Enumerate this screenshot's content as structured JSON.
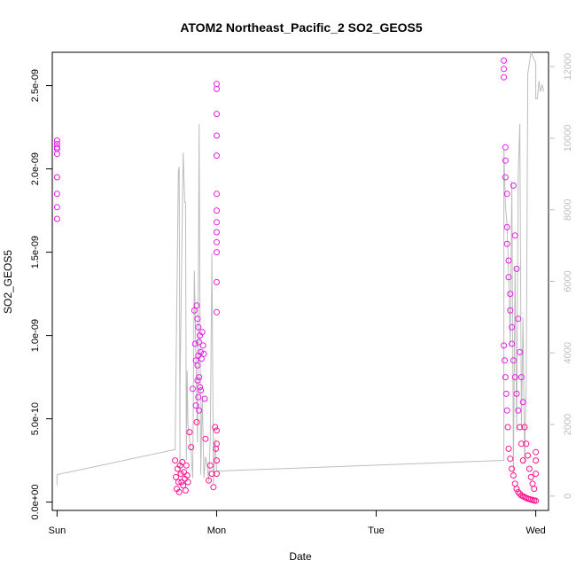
{
  "chart_data": {
    "type": "scatter",
    "title": "ATOM2 Northeast_Pacific_2 SO2_GEOS5",
    "xlabel": "Date",
    "ylabel": "SO2_GEOS5",
    "xlim": [
      -0.03,
      3.08
    ],
    "ylim": [
      -5e-11,
      2.7e-09
    ],
    "y2lim": [
      -400,
      12400
    ],
    "x_ticks": [
      {
        "value": 0,
        "label": "Sun"
      },
      {
        "value": 1,
        "label": "Mon"
      },
      {
        "value": 2,
        "label": "Tue"
      },
      {
        "value": 3,
        "label": "Wed"
      }
    ],
    "y_ticks": [
      {
        "value": 0,
        "label": "0.0e+00"
      },
      {
        "value": 5e-10,
        "label": "5.0e-10"
      },
      {
        "value": 1e-09,
        "label": "1.0e-09"
      },
      {
        "value": 1.5e-09,
        "label": "1.5e-09"
      },
      {
        "value": 2e-09,
        "label": "2.0e-09"
      },
      {
        "value": 2.5e-09,
        "label": "2.5e-09"
      }
    ],
    "y2_ticks": [
      {
        "value": 0,
        "label": "0"
      },
      {
        "value": 2000,
        "label": "2000"
      },
      {
        "value": 4000,
        "label": "4000"
      },
      {
        "value": 6000,
        "label": "6000"
      },
      {
        "value": 8000,
        "label": "8000"
      },
      {
        "value": 10000,
        "label": "10000"
      },
      {
        "value": 12000,
        "label": "12000"
      }
    ],
    "grid": false,
    "colors": {
      "points_high": "#e61ee6",
      "points_low": "#ff1493",
      "altitude_line": "#bdbdbd"
    },
    "series": [
      {
        "kind": "points",
        "x": [
          0.0,
          0.0,
          0.0,
          0.0,
          0.0,
          0.0,
          0.0,
          0.0,
          0.0,
          0.74,
          0.745,
          0.75,
          0.755,
          0.76,
          0.765,
          0.77,
          0.775,
          0.78,
          0.785,
          0.79,
          0.795,
          0.8,
          0.805,
          0.81,
          0.815,
          0.82,
          0.83,
          0.84,
          0.85,
          0.86,
          0.865,
          0.87,
          0.875,
          0.88,
          0.885,
          0.89,
          0.895,
          0.9,
          0.905,
          0.91,
          0.915,
          0.92,
          0.925,
          0.93,
          0.87,
          0.875,
          0.88,
          0.885,
          0.89,
          0.895,
          0.9,
          0.88,
          0.885,
          0.89,
          0.95,
          0.96,
          0.97,
          0.98,
          0.99,
          0.995,
          1.0,
          1.0,
          1.0,
          1.0,
          1.0,
          1.0,
          1.0,
          1.0,
          1.0,
          1.0,
          1.0,
          1.0,
          1.0,
          1.0,
          1.0,
          1.0,
          1.0,
          2.8,
          2.8,
          2.8,
          2.81,
          2.81,
          2.81,
          2.82,
          2.82,
          2.82,
          2.83,
          2.83,
          2.84,
          2.84,
          2.85,
          2.85,
          2.86,
          2.86,
          2.87,
          2.87,
          2.88,
          2.88,
          2.89,
          2.89,
          2.9,
          2.9,
          2.91,
          2.91,
          2.92,
          2.92,
          2.93,
          2.94,
          2.95,
          2.96,
          2.97,
          2.98,
          2.99,
          3.0,
          3.0,
          3.0,
          2.8,
          2.805,
          2.81,
          2.815,
          2.82,
          2.825,
          2.83,
          2.84,
          2.85,
          2.86,
          2.87,
          2.88,
          2.89,
          2.9,
          2.91,
          2.92,
          2.93,
          2.94,
          2.95,
          2.96,
          2.97,
          2.98,
          2.99,
          3.0
        ],
        "y": [
          2.17e-09,
          2.15e-09,
          2.13e-09,
          2.12e-09,
          2.09e-09,
          1.95e-09,
          1.85e-09,
          1.77e-09,
          1.7e-09,
          2.5e-10,
          1.5e-10,
          8e-11,
          2e-10,
          1.2e-10,
          6e-11,
          2.2e-10,
          1.7e-10,
          1.2e-10,
          2.4e-10,
          1e-10,
          1.8e-10,
          1.4e-10,
          7e-11,
          2.2e-10,
          1.6e-10,
          1.2e-10,
          4.2e-10,
          3.3e-10,
          6.8e-10,
          1.15e-09,
          9.5e-10,
          8.5e-10,
          1.18e-09,
          1.1e-09,
          1.05e-09,
          7.5e-10,
          1e-09,
          9e-10,
          8.6e-10,
          1.02e-09,
          9.4e-10,
          8.9e-10,
          6.2e-10,
          3.8e-10,
          5.8e-10,
          4.8e-10,
          7.3e-10,
          6.3e-10,
          5.5e-10,
          6.9e-10,
          6.7e-10,
          8.2e-10,
          8.8e-10,
          9.6e-10,
          1.3e-10,
          2.2e-10,
          1.7e-10,
          9e-11,
          4.5e-10,
          3.2e-10,
          2.51e-09,
          2.48e-09,
          2.33e-09,
          2.2e-09,
          2.08e-09,
          1.85e-09,
          1.75e-09,
          1.68e-09,
          1.62e-09,
          1.56e-09,
          1.5e-09,
          1.32e-09,
          1.14e-09,
          4.3e-10,
          3.5e-10,
          2.5e-10,
          1.7e-10,
          2.65e-09,
          2.6e-09,
          2.55e-09,
          2.13e-09,
          2.05e-09,
          1.95e-09,
          1.85e-09,
          1.65e-09,
          1.55e-09,
          1.45e-09,
          1.35e-09,
          1.25e-09,
          1.15e-09,
          1.05e-09,
          9.5e-10,
          1.9e-09,
          8.5e-10,
          1.6e-09,
          7.5e-10,
          1.4e-09,
          6.5e-10,
          1.1e-09,
          5.5e-10,
          9e-10,
          4.5e-10,
          7.5e-10,
          3.5e-10,
          6e-10,
          2.5e-10,
          4.5e-10,
          3.5e-10,
          2.8e-10,
          2e-10,
          1.5e-10,
          1.1e-10,
          8e-11,
          3e-10,
          2.5e-10,
          1.7e-10,
          9.4e-10,
          8.5e-10,
          7.5e-10,
          6.5e-10,
          5.5e-10,
          4.5e-10,
          3.2e-10,
          2.6e-10,
          2e-10,
          1.6e-10,
          1.1e-10,
          8e-11,
          6e-11,
          5e-11,
          4e-11,
          3.5e-11,
          3e-11,
          2.5e-11,
          2e-11,
          1.8e-11,
          1.5e-11,
          1.2e-11,
          1e-11,
          8e-12
        ]
      },
      {
        "kind": "line",
        "axis": "right",
        "x": [
          0.0,
          0.0,
          0.74,
          0.76,
          0.765,
          0.77,
          0.77,
          0.79,
          0.8,
          0.805,
          0.81,
          0.815,
          0.82,
          0.84,
          0.85,
          0.86,
          0.88,
          0.89,
          0.9,
          0.91,
          0.92,
          0.93,
          0.94,
          0.95,
          0.96,
          0.97,
          0.98,
          0.99,
          1.0,
          2.8,
          2.8,
          2.81,
          2.82,
          2.83,
          2.84,
          2.85,
          2.86,
          2.87,
          2.88,
          2.89,
          2.9,
          2.91,
          2.92,
          2.93,
          2.94,
          2.95,
          2.96,
          2.97,
          3.0,
          3.0,
          3.01,
          3.02,
          3.03,
          3.04,
          3.05
        ],
        "y": [
          300,
          600,
          1300,
          9100,
          9200,
          600,
          3000,
          9600,
          8200,
          8200,
          1000,
          3500,
          2000,
          1200,
          500,
          6300,
          1500,
          10400,
          600,
          2800,
          500,
          1100,
          900,
          400,
          1600,
          6800,
          300,
          1600,
          700,
          1000,
          9700,
          8100,
          7600,
          6200,
          4200,
          8800,
          600,
          6400,
          1800,
          9000,
          10400,
          1900,
          5000,
          900,
          3000,
          11800,
          12100,
          12400,
          12100,
          11100,
          11100,
          11600,
          11300,
          11500,
          11300
        ]
      }
    ]
  }
}
